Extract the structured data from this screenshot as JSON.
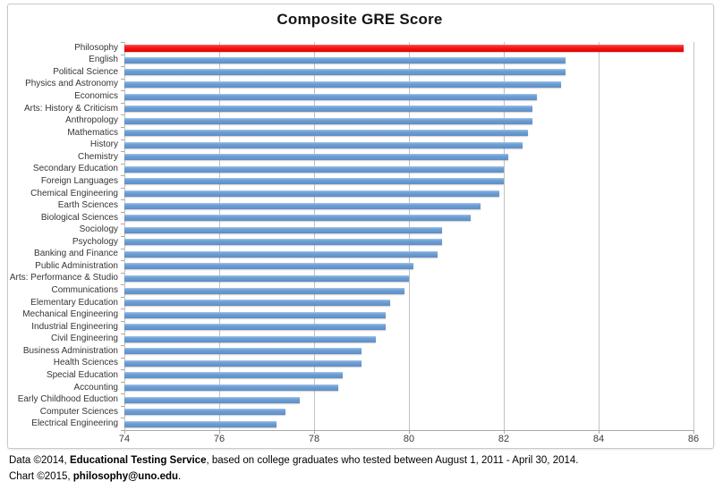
{
  "chart_data": {
    "type": "bar",
    "orientation": "horizontal",
    "title": "Composite GRE Score",
    "xlabel": "",
    "ylabel": "",
    "xlim": [
      74,
      86
    ],
    "xticks": [
      "74",
      "76",
      "78",
      "80",
      "82",
      "84",
      "86"
    ],
    "grid": true,
    "legend": "none",
    "bar_color": "#6B9BD1",
    "highlight_color": "#EE0F0F",
    "highlight_index": 0,
    "categories": [
      "Philosophy",
      "English",
      "Political Science",
      "Physics and Astronomy",
      "Economics",
      "Arts: History & Criticism",
      "Anthropology",
      "Mathematics",
      "History",
      "Chemistry",
      "Secondary Education",
      "Foreign Languages",
      "Chemical Engineering",
      "Earth Sciences",
      "Biological Sciences",
      "Sociology",
      "Psychology",
      "Banking and Finance",
      "Public Administration",
      "Arts: Performance & Studio",
      "Communications",
      "Elementary Education",
      "Mechanical Engineering",
      "Industrial Engineering",
      "Civil Engineering",
      "Business Administration",
      "Health Sciences",
      "Special Education",
      "Accounting",
      "Early Childhood Eduction",
      "Computer Sciences",
      "Electrical Engineering"
    ],
    "values": [
      85.8,
      83.3,
      83.3,
      83.2,
      82.7,
      82.6,
      82.6,
      82.5,
      82.4,
      82.1,
      82.0,
      82.0,
      81.9,
      81.5,
      81.3,
      80.7,
      80.7,
      80.6,
      80.1,
      80.0,
      79.9,
      79.6,
      79.5,
      79.5,
      79.3,
      79.0,
      79.0,
      78.6,
      78.5,
      77.7,
      77.4,
      77.2
    ]
  },
  "footer": {
    "line1": [
      {
        "text": "Data ©2014, ",
        "bold": false
      },
      {
        "text": "Educational Testing Service",
        "bold": true
      },
      {
        "text": ", based on college graduates who tested between August 1, 2011 - April 30, 2014.",
        "bold": false
      }
    ],
    "line2": [
      {
        "text": "Chart ©2015, ",
        "bold": false
      },
      {
        "text": "philosophy@uno.edu",
        "bold": true
      },
      {
        "text": ".",
        "bold": false
      }
    ]
  },
  "colors": {
    "gridline": "#C3C3C3",
    "axis": "#A9A9A9",
    "tick_label": "#3C3C3C",
    "category_label": "#353535",
    "frame_border": "#C9C9C9"
  }
}
